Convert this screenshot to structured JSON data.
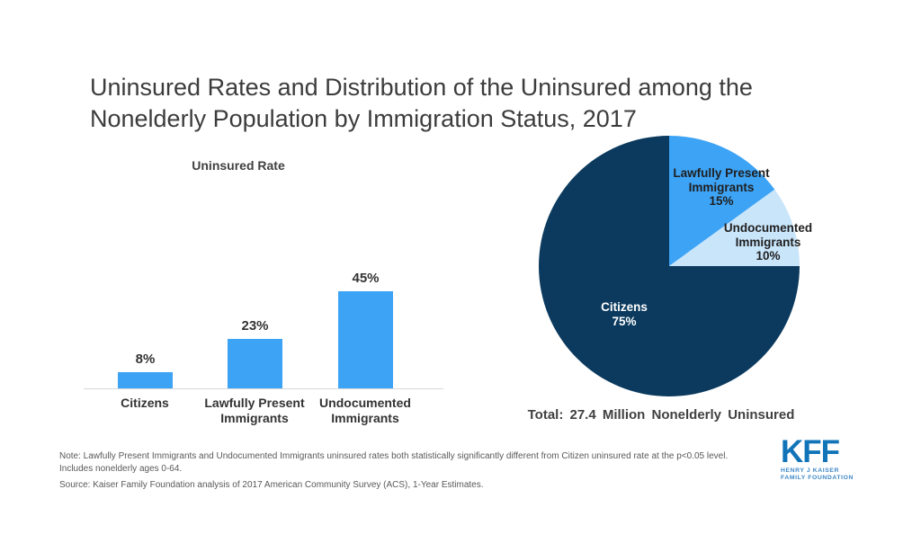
{
  "title": "Uninsured Rates and Distribution of the Uninsured among the Nonelderly Population by Immigration Status, 2017",
  "chart_data": [
    {
      "type": "bar",
      "title": "Uninsured Rate",
      "categories": [
        "Citizens",
        "Lawfully Present Immigrants",
        "Undocumented Immigrants"
      ],
      "values": [
        8,
        23,
        45
      ],
      "value_labels": [
        "8%",
        "23%",
        "45%"
      ],
      "bar_color": "#3da3f5",
      "ylim": [
        0,
        50
      ],
      "grid": false,
      "y_axis_shown": false,
      "baseline_color": "#d9d9d9"
    },
    {
      "type": "pie",
      "title": "Total: 27.4 Million Nonelderly Uninsured",
      "labels": [
        "Lawfully Present Immigrants",
        "Undocumented Immigrants",
        "Citizens"
      ],
      "values": [
        15,
        10,
        75
      ],
      "value_labels": [
        "15%",
        "10%",
        "75%"
      ],
      "colors": [
        "#3da3f5",
        "#c9e5fa",
        "#0b3a5e"
      ],
      "start_angle_deg": 0,
      "direction": "clockwise",
      "label_positions": [
        "inside-top-right",
        "right-edge",
        "inside-left"
      ]
    }
  ],
  "notes": {
    "line1": "Note: Lawfully Present Immigrants and Undocumented Immigrants uninsured rates both statistically significantly different  from Citizen uninsured rate at the p<0.05 level.",
    "line2": "Includes nonelderly ages 0-64.",
    "source": "Source: Kaiser Family Foundation analysis of 2017 American Community Survey (ACS), 1-Year Estimates."
  },
  "logo": {
    "mark": "KFF",
    "tagline1": "HENRY J KAISER",
    "tagline2": "FAMILY FOUNDATION",
    "brand_color": "#1274b8"
  },
  "colors": {
    "title_text": "#3c3c3c",
    "label_text": "#333333",
    "note_text": "#595959",
    "pie_inside_label": "#ffffff"
  }
}
